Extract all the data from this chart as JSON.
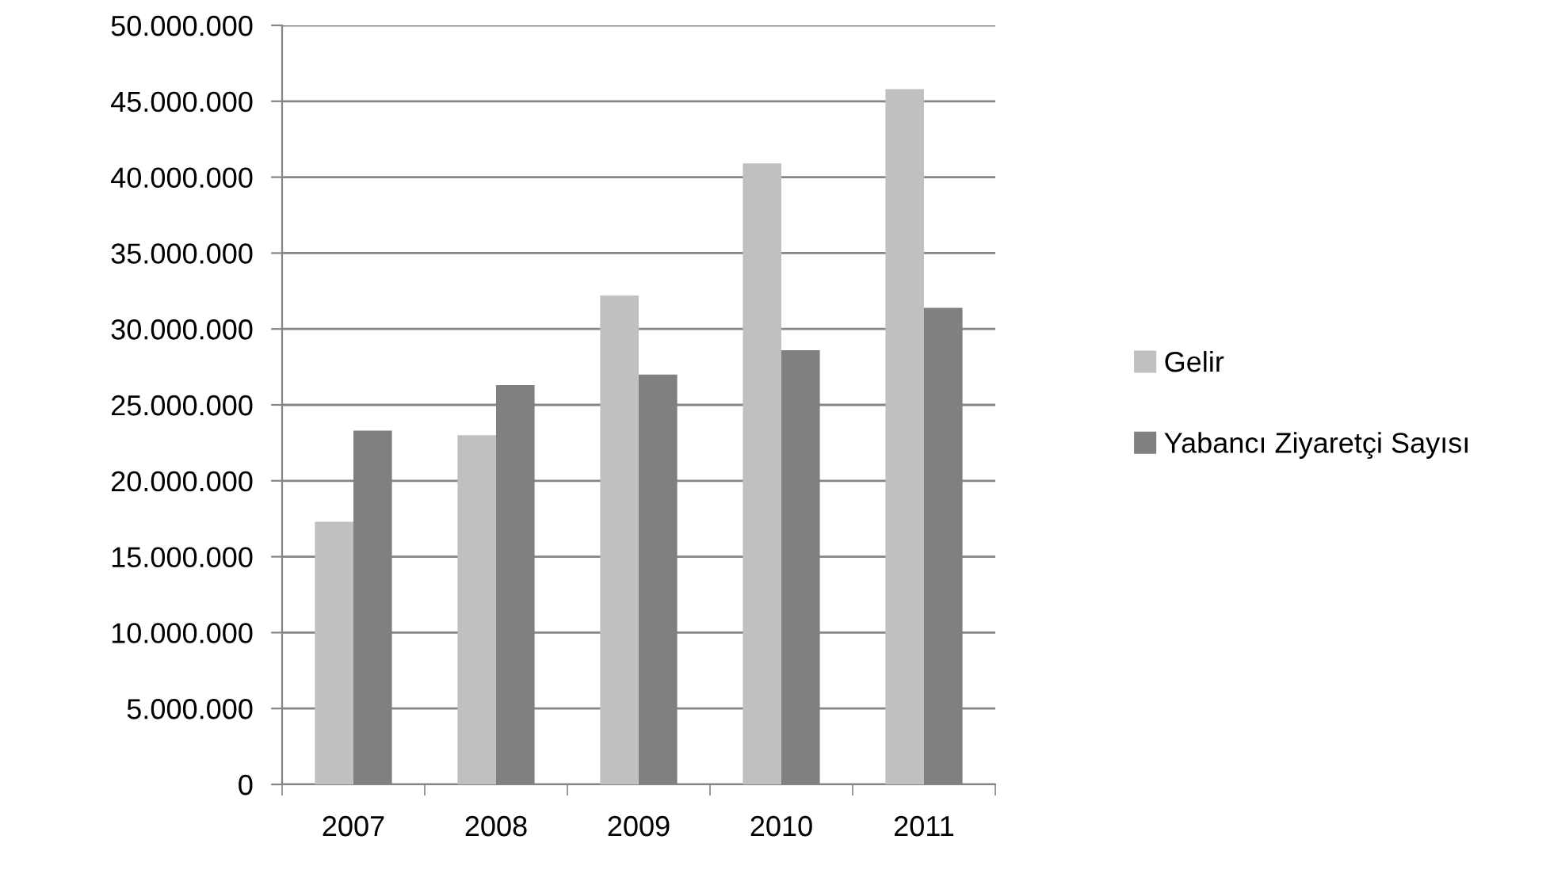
{
  "chart_data": {
    "type": "bar",
    "categories": [
      "2007",
      "2008",
      "2009",
      "2010",
      "2011"
    ],
    "series": [
      {
        "name": "Gelir",
        "color": "#c0c0c0",
        "values": [
          17300000,
          23000000,
          32200000,
          40900000,
          45800000
        ]
      },
      {
        "name": "Yabancı Ziyaretçi Sayısı",
        "color": "#808080",
        "values": [
          23300000,
          26300000,
          27000000,
          28600000,
          31400000
        ]
      }
    ],
    "ylim": [
      0,
      50000000
    ],
    "yticks": [
      {
        "value": 0,
        "label": "0"
      },
      {
        "value": 5000000,
        "label": "5.000.000"
      },
      {
        "value": 10000000,
        "label": "10.000.000"
      },
      {
        "value": 15000000,
        "label": "15.000.000"
      },
      {
        "value": 20000000,
        "label": "20.000.000"
      },
      {
        "value": 25000000,
        "label": "25.000.000"
      },
      {
        "value": 30000000,
        "label": "30.000.000"
      },
      {
        "value": 35000000,
        "label": "35.000.000"
      },
      {
        "value": 40000000,
        "label": "40.000.000"
      },
      {
        "value": 45000000,
        "label": "45.000.000"
      },
      {
        "value": 50000000,
        "label": "50.000.000"
      }
    ],
    "grid": "y",
    "legend": "right"
  }
}
